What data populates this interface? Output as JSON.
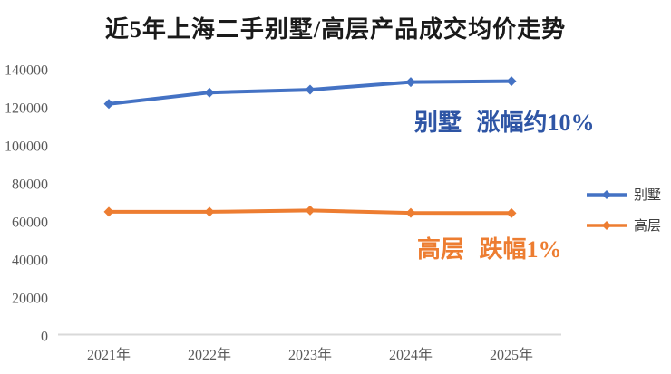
{
  "title": "近5年上海二手别墅/高层产品成交均价走势",
  "chart_data": {
    "type": "line",
    "title": "近5年上海二手别墅/高层产品成交均价走势",
    "categories": [
      "2021年",
      "2022年",
      "2023年",
      "2024年",
      "2025年"
    ],
    "series": [
      {
        "name": "别墅",
        "color": "#4472C4",
        "marker": "diamond",
        "values": [
          122000,
          128000,
          129500,
          133500,
          134000
        ]
      },
      {
        "name": "高层",
        "color": "#ED7D31",
        "marker": "diamond",
        "values": [
          65300,
          65300,
          66000,
          64700,
          64600
        ]
      }
    ],
    "xlabel": "",
    "ylabel": "",
    "ylim": [
      0,
      140000
    ],
    "yticks": [
      0,
      20000,
      40000,
      60000,
      80000,
      100000,
      120000,
      140000
    ],
    "grid": false,
    "legend_position": "right"
  },
  "annotations": [
    {
      "id": "villa-change",
      "text": "别墅 涨幅约10%",
      "color": "#2E55A5"
    },
    {
      "id": "highrise-change",
      "text": "高层 跌幅1%",
      "color": "#ED7D31"
    }
  ],
  "colors": {
    "background": "#FFFFFF",
    "axis_line": "#D9D9D9",
    "tick_label": "#595959",
    "legend_text": "#404040",
    "title_text": "#1A1A1A"
  }
}
